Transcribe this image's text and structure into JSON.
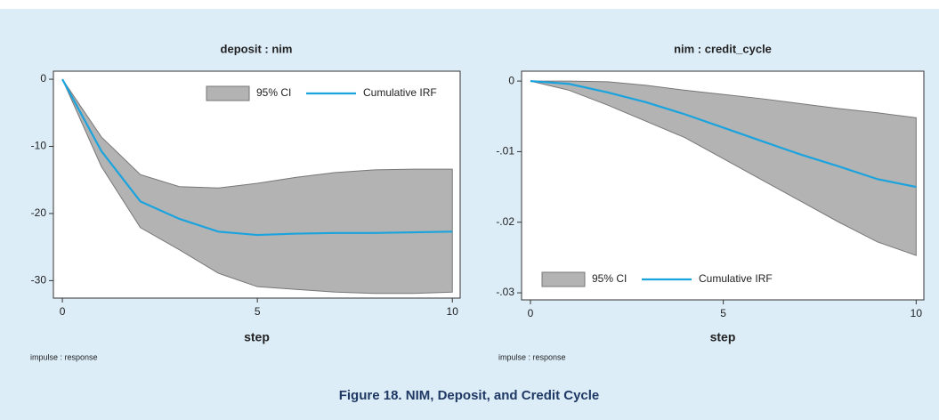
{
  "figure_caption": "Figure 18. NIM, Deposit, and Credit Cycle",
  "chart_data": [
    {
      "type": "line",
      "title": "deposit : nim",
      "x_label": "step",
      "note": "impulse : response",
      "legend": "upper right",
      "x": [
        0,
        1,
        2,
        3,
        4,
        5,
        6,
        7,
        8,
        9,
        10
      ],
      "series": [
        {
          "name": "95% CI",
          "type": "band",
          "color": "#b3b3b3",
          "upper": [
            0,
            -8.6,
            -14.2,
            -16.0,
            -16.2,
            -15.5,
            -14.6,
            -13.9,
            -13.5,
            -13.4,
            -13.4
          ],
          "lower": [
            0,
            -13.0,
            -22.1,
            -25.4,
            -28.9,
            -30.9,
            -31.3,
            -31.7,
            -31.9,
            -31.9,
            -31.7
          ]
        },
        {
          "name": "Cumulative IRF",
          "color": "#1ba3dd",
          "values": [
            0,
            -10.7,
            -18.2,
            -20.8,
            -22.7,
            -23.2,
            -23.0,
            -22.9,
            -22.9,
            -22.8,
            -22.7
          ]
        }
      ],
      "xlim": [
        -0.23,
        10.2
      ],
      "xticks": [
        0,
        5,
        10
      ],
      "ylim": [
        -32.6,
        1.2
      ],
      "yticks": [
        0,
        -10,
        -20,
        -30
      ]
    },
    {
      "type": "line",
      "title": "nim : credit_cycle",
      "x_label": "step",
      "note": "impulse : response",
      "legend": "lower left",
      "x": [
        0,
        1,
        2,
        3,
        4,
        5,
        6,
        7,
        8,
        9,
        10
      ],
      "series": [
        {
          "name": "95% CI",
          "type": "band",
          "color": "#b3b3b3",
          "upper": [
            0,
            0,
            -0.0001,
            -0.0006,
            -0.0013,
            -0.0019,
            -0.0025,
            -0.0032,
            -0.0039,
            -0.0045,
            -0.0052
          ],
          "lower": [
            0,
            -0.0013,
            -0.0034,
            -0.0057,
            -0.008,
            -0.011,
            -0.014,
            -0.017,
            -0.02,
            -0.0228,
            -0.0247
          ]
        },
        {
          "name": "Cumulative IRF",
          "color": "#1ba3dd",
          "values": [
            0,
            -0.0004,
            -0.0016,
            -0.003,
            -0.0047,
            -0.0066,
            -0.0085,
            -0.0104,
            -0.0121,
            -0.0139,
            -0.015
          ]
        }
      ],
      "xlim": [
        -0.23,
        10.2
      ],
      "xticks": [
        0,
        5,
        10
      ],
      "ylim": [
        -0.031,
        0.0014
      ],
      "yticks": [
        0,
        {
          "value": -0.01,
          "label": "-.01"
        },
        {
          "value": -0.02,
          "label": "-.02"
        },
        {
          "value": -0.03,
          "label": "-.03"
        }
      ]
    }
  ]
}
